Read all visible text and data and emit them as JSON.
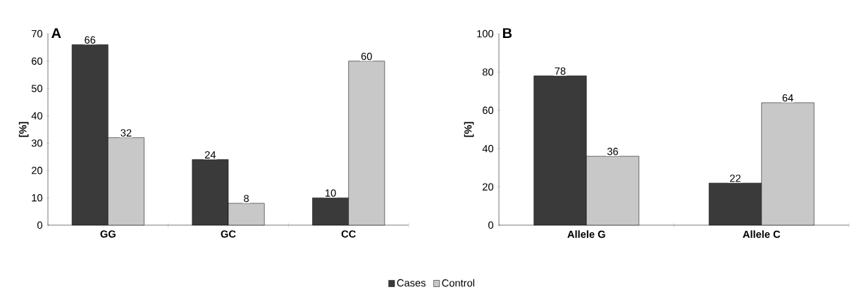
{
  "chart_data": [
    {
      "type": "bar",
      "title": "A",
      "ylabel": "[%]",
      "categories": [
        "GG",
        "GC",
        "CC"
      ],
      "series": [
        {
          "name": "Cases",
          "color": "#3a3a3a",
          "values": [
            66,
            24,
            10
          ]
        },
        {
          "name": "Control",
          "color": "#c8c8c8",
          "values": [
            32,
            8,
            60
          ]
        }
      ],
      "ylim": [
        0,
        70
      ],
      "yticks": [
        0,
        10,
        20,
        30,
        40,
        50,
        60,
        70
      ],
      "data_labels": true,
      "grid": false,
      "legend": "bottom"
    },
    {
      "type": "bar",
      "title": "B",
      "ylabel": "[%]",
      "categories": [
        "Allele G",
        "Allele C"
      ],
      "series": [
        {
          "color": "#3a3a3a",
          "values": [
            78,
            22
          ]
        },
        {
          "color": "#c8c8c8",
          "values": [
            36,
            64
          ]
        }
      ],
      "ylim": [
        0,
        100
      ],
      "yticks": [
        0,
        20,
        40,
        60,
        80,
        100
      ],
      "data_labels": true,
      "grid": false
    }
  ]
}
